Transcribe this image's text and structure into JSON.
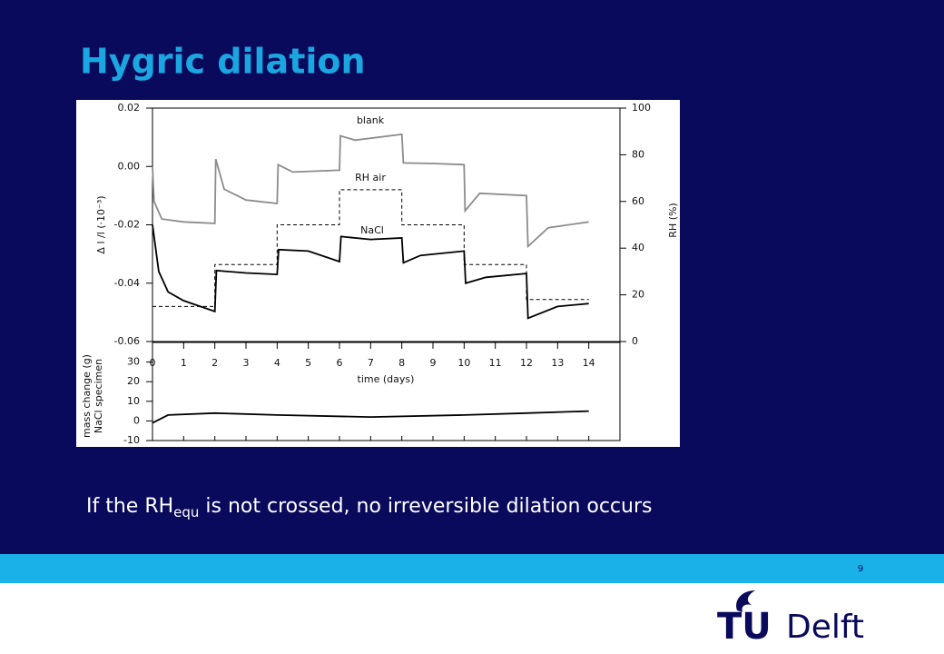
{
  "slide": {
    "title": "Hygric dilation",
    "caption": {
      "before": "If the RH",
      "sub": "equ",
      "after": " is not crossed, no irreversible dilation occurs"
    },
    "page_number": 9,
    "logo": {
      "mark": "TU",
      "name": "Delft"
    }
  },
  "chart_data": [
    {
      "type": "line",
      "ylabel": "Δ l /l  (·10⁻³)",
      "y2label": "RH (%)",
      "xlabel": "time (days)",
      "xlim": [
        0,
        15
      ],
      "xticks": [
        0,
        1,
        2,
        3,
        4,
        5,
        6,
        7,
        8,
        9,
        10,
        11,
        12,
        13,
        14
      ],
      "ylim": [
        -0.06,
        0.02
      ],
      "yticks": [
        -0.06,
        -0.04,
        -0.02,
        {
          "value": 0,
          "label": "0.00"
        },
        0.02
      ],
      "y2lim": [
        0,
        100
      ],
      "y2ticks": [
        0,
        20,
        40,
        60,
        80,
        100
      ],
      "series": [
        {
          "name": "blank",
          "color": "#8c8c8c",
          "x": [
            0,
            0.05,
            0.3,
            1,
            2,
            2.03,
            2.3,
            3,
            4,
            4.03,
            4.5,
            6,
            6.03,
            6.5,
            8,
            8.05,
            9,
            10,
            10.03,
            10.5,
            12,
            12.05,
            12.7,
            14
          ],
          "values": [
            0.0,
            -0.012,
            -0.018,
            -0.019,
            -0.0195,
            0.0025,
            -0.0078,
            -0.0115,
            -0.0127,
            0.0006,
            -0.0019,
            -0.0013,
            0.0105,
            0.009,
            0.011,
            0.0012,
            0.001,
            0.0006,
            -0.0152,
            -0.0092,
            -0.01,
            -0.0274,
            -0.021,
            -0.019
          ]
        },
        {
          "name": "RH air",
          "color": "#000000",
          "dashed": true,
          "axis": "y2",
          "x": [
            0,
            2,
            2,
            4,
            4,
            6,
            6,
            8,
            8,
            10,
            10,
            12,
            12,
            14
          ],
          "values": [
            15,
            15,
            33,
            33,
            50,
            50,
            65,
            65,
            50,
            50,
            33,
            33,
            18,
            18
          ]
        },
        {
          "name": "NaCl",
          "color": "#000000",
          "x": [
            0,
            0.2,
            0.5,
            1,
            2,
            2.05,
            3,
            4,
            4.05,
            5,
            6,
            6.05,
            7,
            8,
            8.05,
            8.6,
            10,
            10.05,
            10.7,
            12,
            12.05,
            13,
            14
          ],
          "values": [
            -0.02,
            -0.036,
            -0.043,
            -0.046,
            -0.0497,
            -0.0357,
            -0.0365,
            -0.037,
            -0.0285,
            -0.029,
            -0.0326,
            -0.024,
            -0.025,
            -0.0245,
            -0.033,
            -0.0305,
            -0.029,
            -0.04,
            -0.038,
            -0.0367,
            -0.052,
            -0.048,
            -0.047
          ]
        }
      ]
    },
    {
      "type": "line",
      "ylabel": [
        "mass change (g)",
        "NaCl specimen"
      ],
      "xlim": [
        0,
        15
      ],
      "ylim": [
        -10,
        40
      ],
      "yticks": [
        -10,
        0,
        10,
        20,
        30
      ],
      "series": [
        {
          "color": "#000000",
          "x": [
            0,
            0.5,
            2,
            4,
            7,
            10,
            12,
            14
          ],
          "values": [
            -1,
            3,
            4,
            3,
            2,
            3,
            4,
            5
          ]
        }
      ]
    }
  ]
}
